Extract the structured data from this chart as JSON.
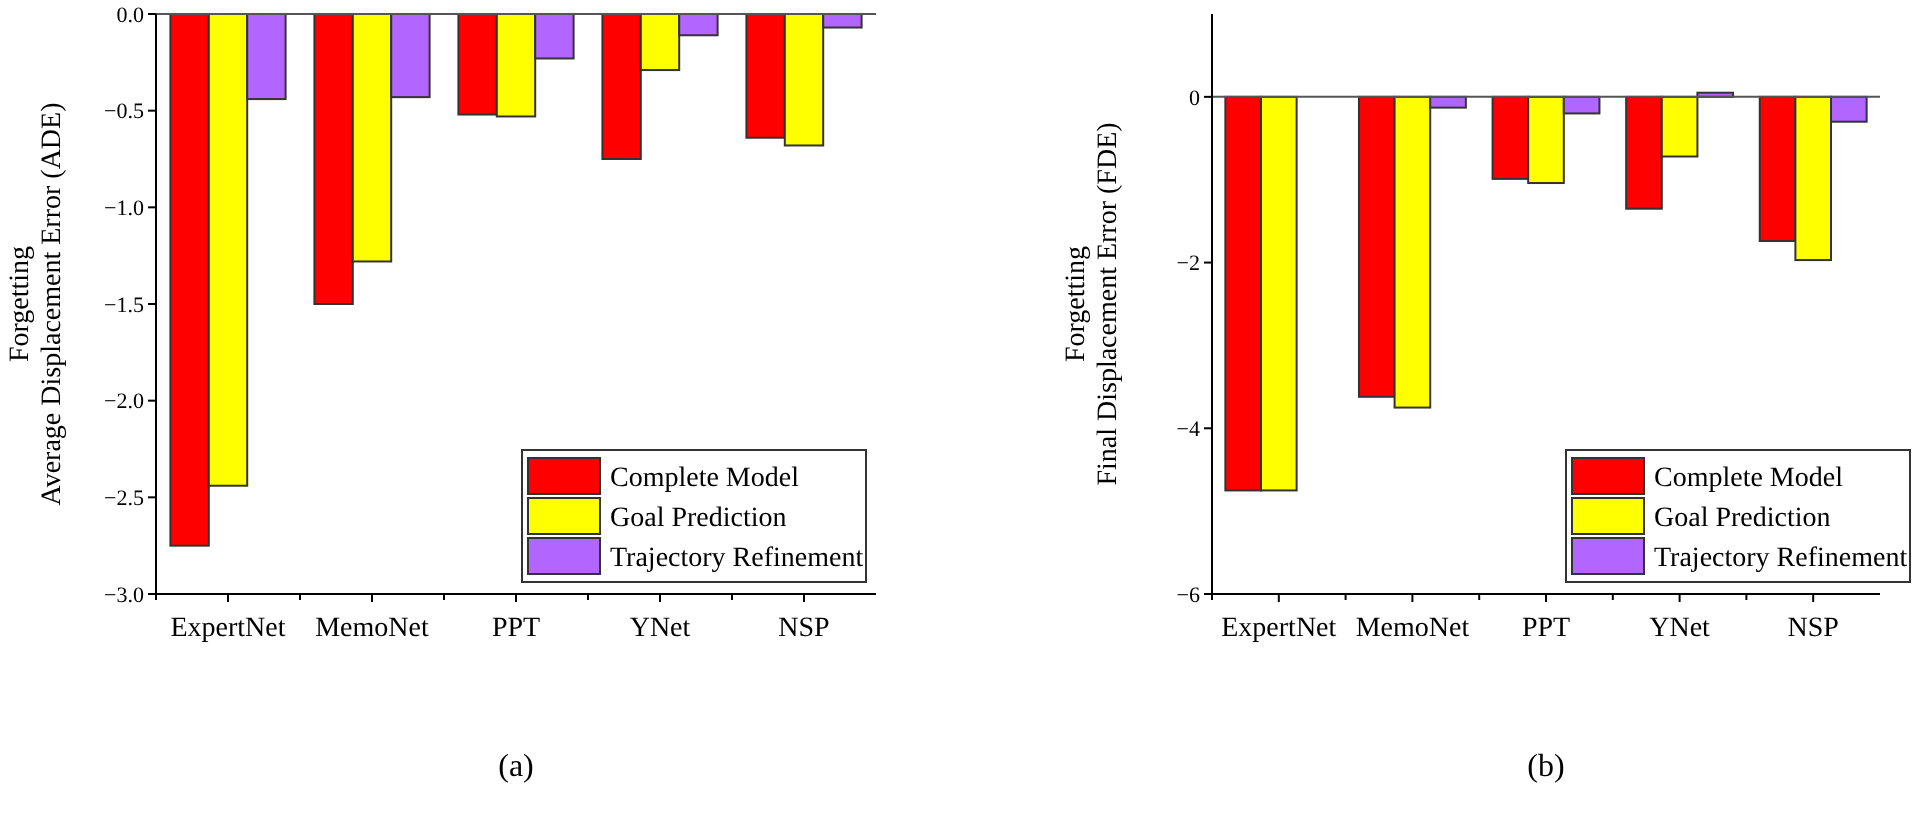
{
  "chart_data": [
    {
      "type": "bar",
      "ylabel": "Forgetting\nAverage Displacement Error (ADE)",
      "categories": [
        "ExpertNet",
        "MemoNet",
        "PPT",
        "YNet",
        "NSP"
      ],
      "series": [
        {
          "name": "Complete Model",
          "color": "#ff0000",
          "values": [
            -2.75,
            -1.5,
            -0.52,
            -0.75,
            -0.64
          ]
        },
        {
          "name": "Goal Prediction",
          "color": "#ffff00",
          "values": [
            -2.44,
            -1.28,
            -0.53,
            -0.29,
            -0.68
          ]
        },
        {
          "name": "Trajectory Refinement",
          "color": "#b266ff",
          "values": [
            -0.44,
            -0.43,
            -0.23,
            -0.11,
            -0.07
          ]
        }
      ],
      "ylim": [
        -3,
        0
      ],
      "yticks": [
        {
          "value": -3,
          "label": "−3.0"
        },
        {
          "value": -2.5,
          "label": "−2.5"
        },
        {
          "value": -2,
          "label": "−2.0"
        },
        {
          "value": -1.5,
          "label": "−1.5"
        },
        {
          "value": -1,
          "label": "−1.0"
        },
        {
          "value": -0.5,
          "label": "−0.5"
        },
        {
          "value": 0,
          "label": "0.0"
        }
      ],
      "grid": false,
      "legend": "bottom right",
      "annotations": [
        "(a)"
      ]
    },
    {
      "type": "bar",
      "ylabel": "Forgetting\nFinal Displacement Error (FDE)",
      "categories": [
        "ExpertNet",
        "MemoNet",
        "PPT",
        "YNet",
        "NSP"
      ],
      "series": [
        {
          "name": "Complete Model",
          "color": "#ff0000",
          "values": [
            -4.75,
            -3.62,
            -0.99,
            -1.35,
            -1.74
          ]
        },
        {
          "name": "Goal Prediction",
          "color": "#ffff00",
          "values": [
            -4.75,
            -3.75,
            -1.04,
            -0.72,
            -1.97
          ]
        },
        {
          "name": "Trajectory Refinement",
          "color": "#b266ff",
          "values": [
            0,
            -0.13,
            -0.2,
            0.05,
            -0.3
          ]
        }
      ],
      "ylim": [
        -6,
        1
      ],
      "yticks": [
        {
          "value": -6,
          "label": "−6"
        },
        {
          "value": -4,
          "label": "−4"
        },
        {
          "value": -2,
          "label": "−2"
        },
        0
      ],
      "ref_lines": [
        {
          "axis": "y",
          "value": 0,
          "color": "#555555"
        }
      ],
      "grid": false,
      "legend": "bottom right",
      "annotations": [
        "(b)"
      ]
    }
  ]
}
